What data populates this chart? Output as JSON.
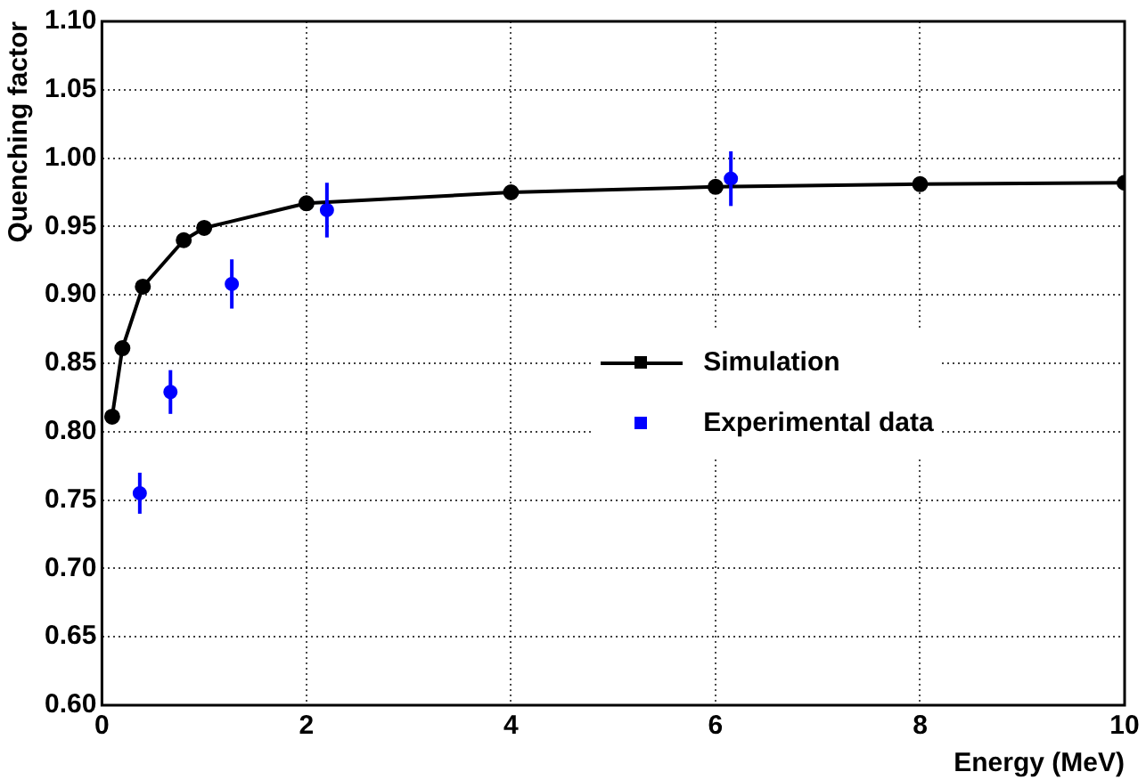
{
  "chart_data": {
    "type": "line",
    "xlabel": "Energy (MeV)",
    "ylabel": "Quenching factor",
    "xlim": [
      0,
      10
    ],
    "xticks": [
      0,
      2,
      4,
      6,
      8,
      10
    ],
    "ylim": [
      0.6,
      1.1
    ],
    "yticks": [
      {
        "value": 0.6,
        "label": "0.60"
      },
      {
        "value": 0.65,
        "label": "0.65"
      },
      {
        "value": 0.7,
        "label": "0.70"
      },
      {
        "value": 0.75,
        "label": "0.75"
      },
      {
        "value": 0.8,
        "label": "0.80"
      },
      {
        "value": 0.85,
        "label": "0.85"
      },
      {
        "value": 0.9,
        "label": "0.90"
      },
      {
        "value": 0.95,
        "label": "0.95"
      },
      {
        "value": 1.0,
        "label": "1.00"
      },
      {
        "value": 1.05,
        "label": "1.05"
      },
      {
        "value": 1.1,
        "label": "1.10"
      }
    ],
    "grid": true,
    "legend": "right",
    "marker": "circle",
    "series": [
      {
        "name": "Simulation",
        "color": "#000000",
        "x": [
          0.1,
          0.2,
          0.4,
          0.8,
          1.0,
          2.0,
          4.0,
          6.0,
          8.0,
          10.0
        ],
        "values": [
          0.811,
          0.861,
          0.906,
          0.94,
          0.949,
          0.967,
          0.975,
          0.979,
          0.981,
          0.982
        ]
      },
      {
        "name": "Experimental data",
        "type": "scatter",
        "color": "#0000ff",
        "x": [
          0.37,
          0.67,
          1.27,
          2.2,
          6.15
        ],
        "values": [
          0.755,
          0.829,
          0.908,
          0.962,
          0.985
        ],
        "errors": [
          0.015,
          0.016,
          0.018,
          0.02,
          0.02
        ]
      }
    ]
  }
}
